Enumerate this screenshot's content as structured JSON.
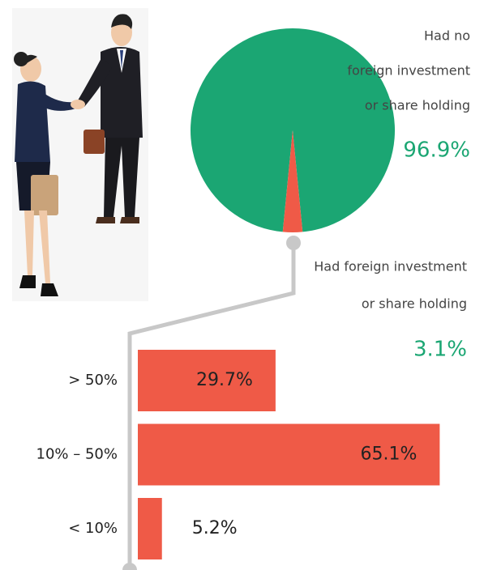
{
  "chart_data": [
    {
      "type": "pie",
      "categories": [
        [
          "Had no",
          "foreign investment",
          "or share holding"
        ],
        [
          "Had foreign investment",
          "or share holding"
        ]
      ],
      "values": [
        96.9,
        3.1
      ],
      "value_labels": [
        "96.9%",
        "3.1%"
      ],
      "colors": [
        "#1ba673",
        "#ef5a47"
      ]
    },
    {
      "type": "hbar",
      "categories": [
        "> 50%",
        "10% – 50%",
        "< 10%"
      ],
      "values": [
        29.7,
        65.1,
        5.2
      ],
      "value_labels": [
        "29.7%",
        "65.1%",
        "5.2%"
      ],
      "color": "#ef5a47"
    }
  ]
}
